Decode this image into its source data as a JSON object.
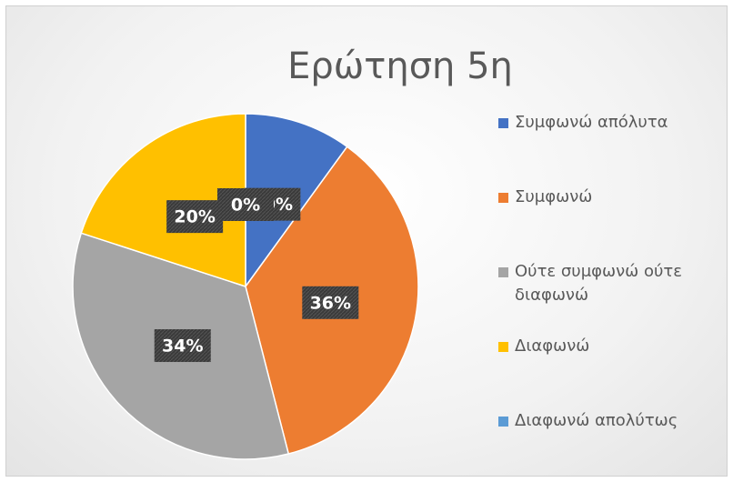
{
  "chart_data": {
    "type": "pie",
    "title": "Ερώτηση 5η",
    "categories": [
      "Συμφωνώ απόλυτα",
      "Συμφωνώ",
      "Ούτε συμφωνώ ούτε διαφωνώ",
      "Διαφωνώ",
      "Διαφωνώ απολύτως"
    ],
    "values": [
      10,
      36,
      34,
      20,
      0
    ],
    "value_labels": [
      "10%",
      "36%",
      "34%",
      "20%",
      "0%"
    ],
    "colors": [
      "#4472c4",
      "#ed7d31",
      "#a5a5a5",
      "#ffc000",
      "#5b9bd5"
    ],
    "legend": "right"
  }
}
